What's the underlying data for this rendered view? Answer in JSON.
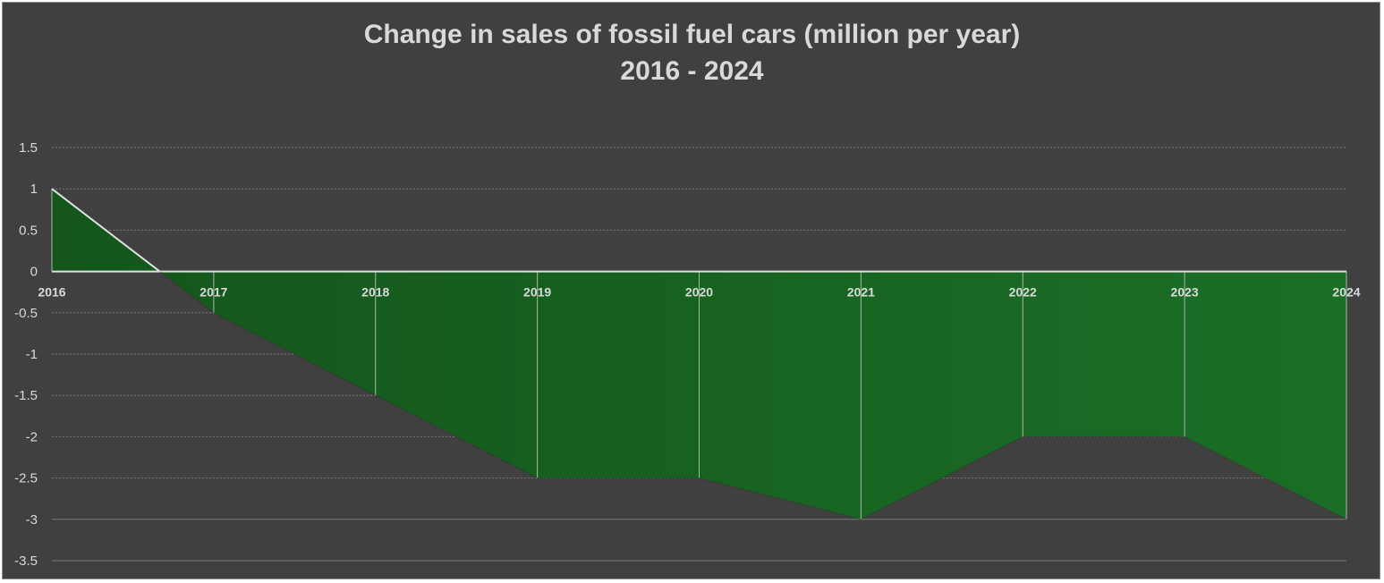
{
  "chart_data": {
    "type": "area",
    "title": "Change in sales of fossil fuel cars (million per year)",
    "subtitle": "2016 - 2024",
    "x": [
      "2016",
      "2017",
      "2018",
      "2019",
      "2020",
      "2021",
      "2022",
      "2023",
      "2024"
    ],
    "series": [
      {
        "values": [
          1,
          -0.5,
          -1.5,
          -2.5,
          -2.5,
          -3,
          -2,
          -2,
          -3
        ]
      }
    ],
    "ylim": [
      -3.5,
      1.5
    ],
    "yticks": [
      "1.5",
      "1",
      "0.5",
      "0",
      "-0.5",
      "-1",
      "-1.5",
      "-2",
      "-2.5",
      "-3",
      "-3.5"
    ],
    "grid": true,
    "legend": "none",
    "colors": {
      "background": "#404040",
      "fill_dark": "#155a1c",
      "fill_light": "#1a6e25",
      "line": "#e0e0e0",
      "grid": "#7a7a7a",
      "text": "#d9d9d9"
    }
  }
}
